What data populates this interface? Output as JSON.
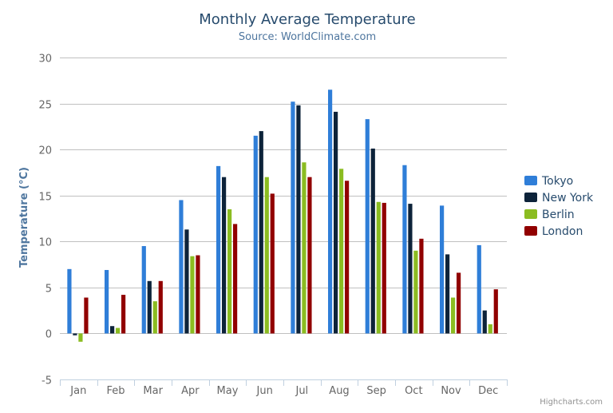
{
  "chart_data": {
    "type": "bar",
    "title": "Monthly Average Temperature",
    "subtitle": "Source: WorldClimate.com",
    "xlabel": "",
    "ylabel": "Temperature (°C)",
    "ylim": [
      -5,
      30
    ],
    "yticks": [
      -5,
      0,
      5,
      10,
      15,
      20,
      25,
      30
    ],
    "grid": true,
    "legend_position": "right",
    "categories": [
      "Jan",
      "Feb",
      "Mar",
      "Apr",
      "May",
      "Jun",
      "Jul",
      "Aug",
      "Sep",
      "Oct",
      "Nov",
      "Dec"
    ],
    "series": [
      {
        "name": "Tokyo",
        "color": "#2f7ed8",
        "values": [
          7.0,
          6.9,
          9.5,
          14.5,
          18.2,
          21.5,
          25.2,
          26.5,
          23.3,
          18.3,
          13.9,
          9.6
        ]
      },
      {
        "name": "New York",
        "color": "#0d233a",
        "values": [
          -0.2,
          0.8,
          5.7,
          11.3,
          17.0,
          22.0,
          24.8,
          24.1,
          20.1,
          14.1,
          8.6,
          2.5
        ]
      },
      {
        "name": "Berlin",
        "color": "#8bbc21",
        "values": [
          -0.9,
          0.6,
          3.5,
          8.4,
          13.5,
          17.0,
          18.6,
          17.9,
          14.3,
          9.0,
          3.9,
          1.0
        ]
      },
      {
        "name": "London",
        "color": "#910000",
        "values": [
          3.9,
          4.2,
          5.7,
          8.5,
          11.9,
          15.2,
          17.0,
          16.6,
          14.2,
          10.3,
          6.6,
          4.8
        ]
      }
    ],
    "credits": "Highcharts.com"
  }
}
